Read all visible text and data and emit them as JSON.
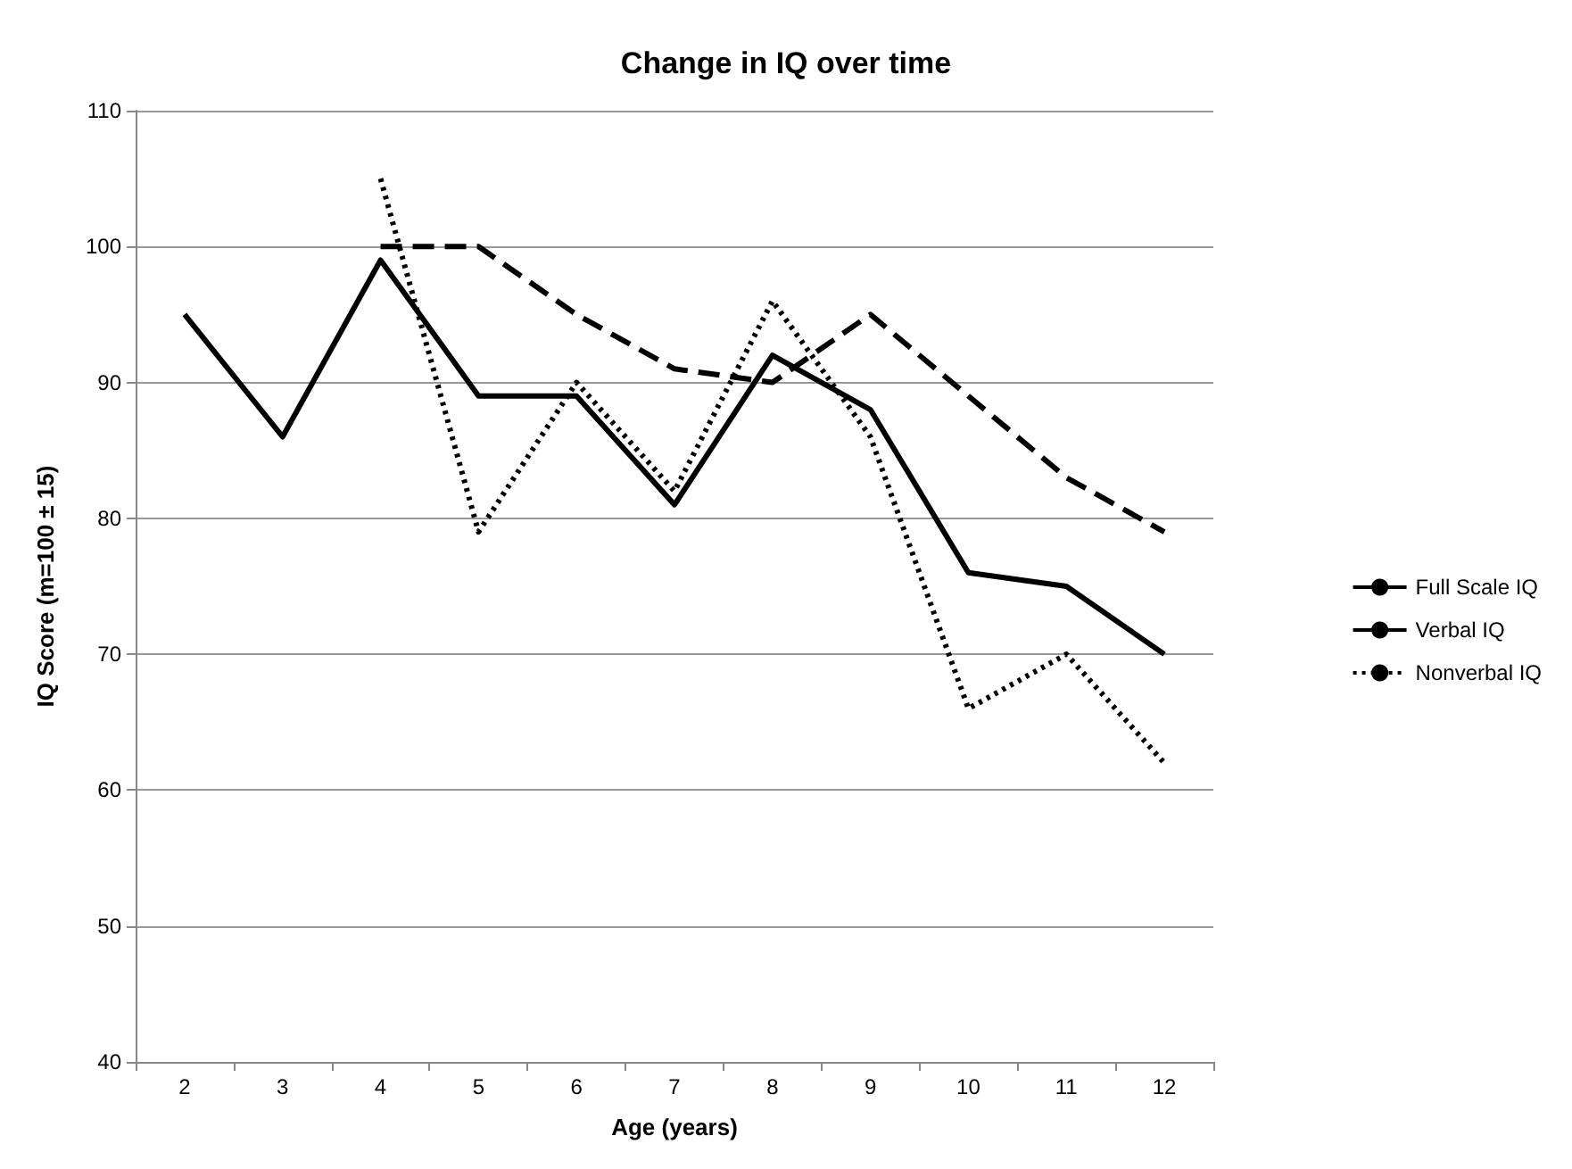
{
  "chart_data": {
    "type": "line",
    "title": "Change in IQ over time",
    "xlabel": "Age (years)",
    "ylabel": "IQ Score (m=100 ± 15)",
    "categories": [
      "2",
      "3",
      "4",
      "5",
      "6",
      "7",
      "8",
      "9",
      "10",
      "11",
      "12"
    ],
    "series": [
      {
        "name": "Full Scale IQ",
        "color": "#000000",
        "line_style": "solid",
        "values": [
          95,
          86,
          99,
          89,
          89,
          81,
          92,
          88,
          76,
          75,
          70
        ]
      },
      {
        "name": "Verbal IQ",
        "color": "#000000",
        "line_style": "dashed",
        "values": [
          null,
          null,
          100,
          100,
          95,
          91,
          90,
          95,
          89,
          83,
          79
        ]
      },
      {
        "name": "Nonverbal IQ",
        "color": "#000000",
        "line_style": "dotted",
        "values": [
          null,
          null,
          105,
          79,
          90,
          82,
          96,
          86,
          66,
          70,
          62
        ]
      }
    ],
    "ylim": [
      40,
      110
    ],
    "yticks": [
      40,
      50,
      60,
      70,
      80,
      90,
      100,
      110
    ],
    "grid": "y",
    "legend": "right",
    "marker": "none"
  }
}
